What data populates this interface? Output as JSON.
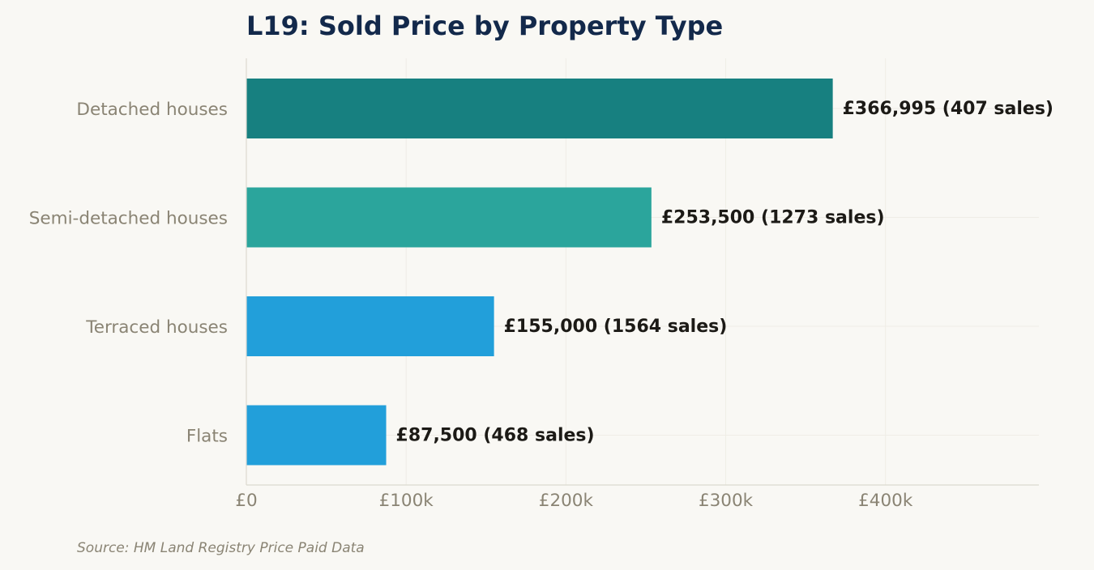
{
  "chart_data": {
    "type": "bar",
    "orientation": "horizontal",
    "title": "L19: Sold Price by Property Type",
    "categories": [
      "Detached houses",
      "Semi-detached houses",
      "Terraced houses",
      "Flats"
    ],
    "values": [
      366995,
      253500,
      155000,
      87500
    ],
    "sales": [
      407,
      1273,
      1564,
      468
    ],
    "value_labels": [
      "£366,995  (407 sales)",
      "£253,500  (1273 sales)",
      "£155,000  (1564 sales)",
      "£87,500  (468 sales)"
    ],
    "colors": [
      "#178080",
      "#2ba59c",
      "#229fda",
      "#229fda"
    ],
    "xlim": [
      0,
      496000
    ],
    "xticks": [
      0,
      100000,
      200000,
      300000,
      400000
    ],
    "xtick_labels": [
      "£0",
      "£100k",
      "£200k",
      "£300k",
      "£400k"
    ],
    "grid": true,
    "xlabel": "",
    "ylabel": ""
  },
  "source_note": "Source: HM Land Registry Price Paid Data",
  "colors": {
    "background": "#f9f8f4",
    "title": "#13294b",
    "axis_text": "#8a8474",
    "value_text": "#1c1a16",
    "grid": "#efede6",
    "axis_line": "#dcd9cf"
  }
}
